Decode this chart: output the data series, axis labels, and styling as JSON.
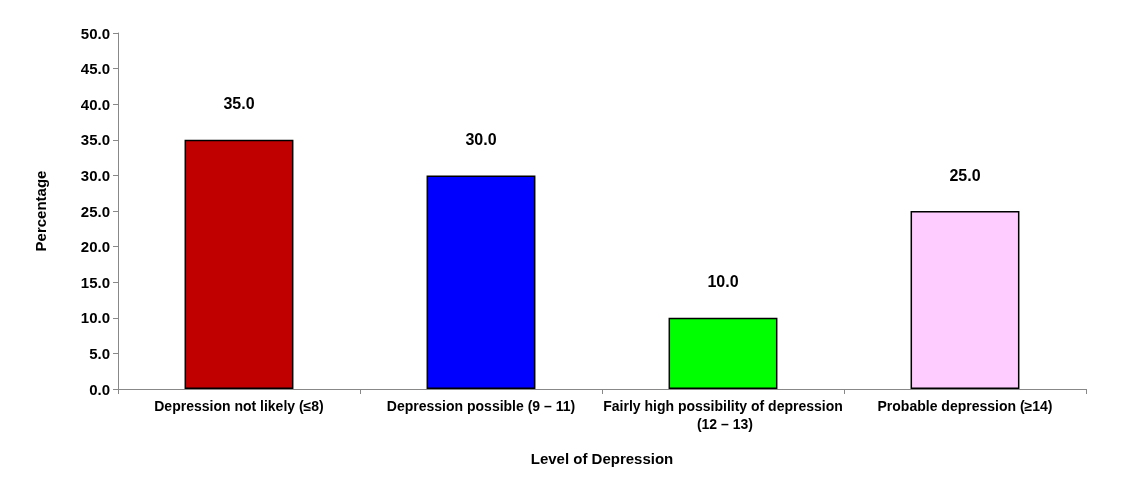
{
  "chart_data": {
    "type": "bar",
    "xlabel": "Level of Depression",
    "ylabel": "Percentage",
    "categories": [
      "Depression not likely (≤8)",
      "Depression possible (9 – 11)",
      "Fairly high possibility of depression (12 – 13)",
      "Probable depression (≥14)"
    ],
    "values": [
      35,
      30,
      10,
      25
    ],
    "colors": [
      "#c00000",
      "#0000ff",
      "#00ff00",
      "#ffccff"
    ],
    "value_labels": [
      "35.0",
      "30.0",
      "10.0",
      "25.0"
    ],
    "ylim": [
      0,
      50
    ],
    "yticks": [
      {
        "value": 0,
        "label": "0.0"
      },
      {
        "value": 5,
        "label": "5.0"
      },
      {
        "value": 10,
        "label": "10.0"
      },
      {
        "value": 15,
        "label": "15.0"
      },
      {
        "value": 20,
        "label": "20.0"
      },
      {
        "value": 25,
        "label": "25.0"
      },
      {
        "value": 30,
        "label": "30.0"
      },
      {
        "value": 35,
        "label": "35.0"
      },
      {
        "value": 40,
        "label": "40.0"
      },
      {
        "value": 45,
        "label": "45.0"
      },
      {
        "value": 50,
        "label": "50.0"
      }
    ],
    "grid": false
  }
}
